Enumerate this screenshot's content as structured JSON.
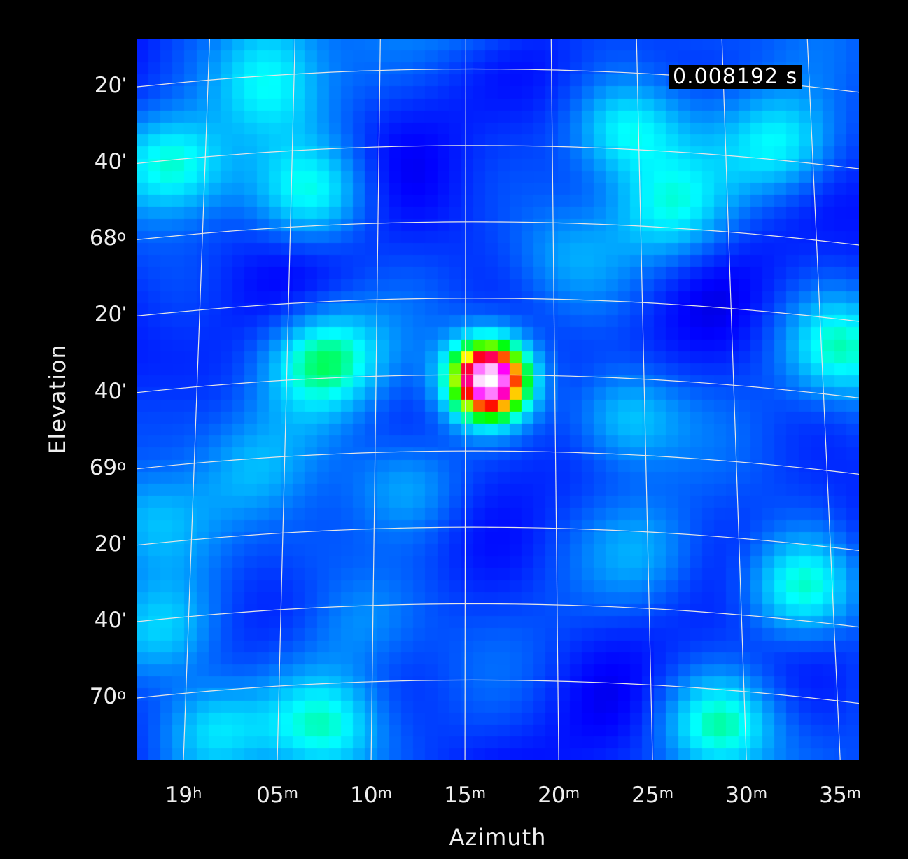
{
  "chart_data": {
    "type": "heatmap",
    "title": "",
    "xlabel": "Azimuth",
    "ylabel": "Elevation",
    "annotation": "0.008192 s",
    "x_ticks": [
      {
        "value": 0,
        "main": "19",
        "unit": "h"
      },
      {
        "value": 5,
        "main": "05",
        "unit": "m"
      },
      {
        "value": 10,
        "main": "10",
        "unit": "m"
      },
      {
        "value": 15,
        "main": "15",
        "unit": "m"
      },
      {
        "value": 20,
        "main": "20",
        "unit": "m"
      },
      {
        "value": 25,
        "main": "25",
        "unit": "m"
      },
      {
        "value": 30,
        "main": "30",
        "unit": "m"
      },
      {
        "value": 35,
        "main": "35",
        "unit": "m"
      }
    ],
    "y_ticks": [
      {
        "value": 67.333,
        "main": "20",
        "unit": "'"
      },
      {
        "value": 67.667,
        "main": "40",
        "unit": "'"
      },
      {
        "value": 68.0,
        "main": "68",
        "unit": "o"
      },
      {
        "value": 68.333,
        "main": "20",
        "unit": "'"
      },
      {
        "value": 68.667,
        "main": "40",
        "unit": "'"
      },
      {
        "value": 69.0,
        "main": "69",
        "unit": "o"
      },
      {
        "value": 69.333,
        "main": "20",
        "unit": "'"
      },
      {
        "value": 69.667,
        "main": "40",
        "unit": "'"
      },
      {
        "value": 70.0,
        "main": "70",
        "unit": "o"
      }
    ],
    "colormap": [
      "#000000",
      "#0000ff",
      "#00ffff",
      "#00ff00",
      "#ffff00",
      "#ff0000",
      "#ff00ff",
      "#ffffff"
    ],
    "peak": {
      "azimuth_min": 16.3,
      "elevation_deg": 68.69,
      "intensity": 1.0
    },
    "sidelobes": [
      {
        "azimuth_min": 7.5,
        "elevation_deg": 68.6,
        "intensity": 0.48
      },
      {
        "azimuth_min": -0.5,
        "elevation_deg": 67.75,
        "intensity": 0.44
      },
      {
        "azimuth_min": 4.5,
        "elevation_deg": 67.4,
        "intensity": 0.38
      },
      {
        "azimuth_min": 7.0,
        "elevation_deg": 67.88,
        "intensity": 0.4
      },
      {
        "azimuth_min": 23.5,
        "elevation_deg": 67.6,
        "intensity": 0.42
      },
      {
        "azimuth_min": 26.0,
        "elevation_deg": 67.95,
        "intensity": 0.38
      },
      {
        "azimuth_min": 32.0,
        "elevation_deg": 67.67,
        "intensity": 0.4
      },
      {
        "azimuth_min": 35.0,
        "elevation_deg": 68.55,
        "intensity": 0.42
      },
      {
        "azimuth_min": 23.5,
        "elevation_deg": 68.85,
        "intensity": 0.4
      },
      {
        "azimuth_min": 12.0,
        "elevation_deg": 69.15,
        "intensity": 0.34
      },
      {
        "azimuth_min": 33.0,
        "elevation_deg": 69.6,
        "intensity": 0.44
      },
      {
        "azimuth_min": 28.5,
        "elevation_deg": 70.2,
        "intensity": 0.44
      },
      {
        "azimuth_min": 7.5,
        "elevation_deg": 70.2,
        "intensity": 0.4
      },
      {
        "azimuth_min": 1.5,
        "elevation_deg": 70.2,
        "intensity": 0.4
      },
      {
        "azimuth_min": -1.0,
        "elevation_deg": 69.8,
        "intensity": 0.38
      },
      {
        "azimuth_min": 3.5,
        "elevation_deg": 69.1,
        "intensity": 0.3
      },
      {
        "azimuth_min": 9.5,
        "elevation_deg": 69.75,
        "intensity": 0.3
      },
      {
        "azimuth_min": 6.5,
        "elevation_deg": 69.45,
        "intensity": 0.28
      },
      {
        "azimuth_min": 25.0,
        "elevation_deg": 69.45,
        "intensity": 0.28
      },
      {
        "azimuth_min": 16.0,
        "elevation_deg": 67.05,
        "intensity": 0.3
      },
      {
        "azimuth_min": 20.5,
        "elevation_deg": 68.15,
        "intensity": 0.28
      },
      {
        "azimuth_min": -0.5,
        "elevation_deg": 68.85,
        "intensity": 0.26
      },
      {
        "azimuth_min": 28.0,
        "elevation_deg": 67.1,
        "intensity": 0.3
      },
      {
        "azimuth_min": 5.0,
        "elevation_deg": 67.1,
        "intensity": 0.32
      },
      {
        "azimuth_min": -2.0,
        "elevation_deg": 69.3,
        "intensity": 0.3
      }
    ]
  }
}
